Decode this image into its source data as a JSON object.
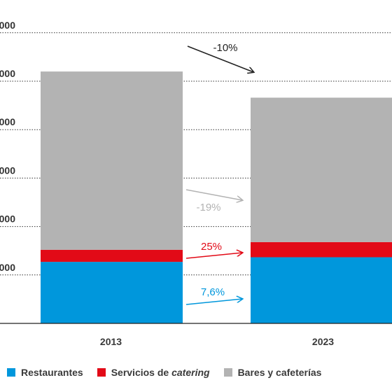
{
  "chart_data": {
    "type": "bar",
    "stacked": true,
    "categories": [
      "2013",
      "2023"
    ],
    "ytick_labels": [
      "000",
      "000",
      "000",
      "000",
      "000",
      "000"
    ],
    "series": [
      {
        "name": "Restaurantes",
        "color": "#0097dc",
        "values": [
          1270,
          1366
        ]
      },
      {
        "name": "Servicios de catering",
        "color": "#e20a17",
        "values": [
          250,
          313
        ]
      },
      {
        "name": "Bares y cafeterías",
        "color": "#b3b3b3",
        "values": [
          3680,
          2981
        ]
      }
    ],
    "annotations": [
      {
        "label": "-10%",
        "color": "#222222"
      },
      {
        "label": "-19%",
        "color": "#b3b3b3"
      },
      {
        "label": "25%",
        "color": "#e20a17"
      },
      {
        "label": "7,6%",
        "color": "#0097dc"
      }
    ]
  },
  "legend": {
    "restaurantes": "Restaurantes",
    "catering_prefix": "Servicios de ",
    "catering_italic": "catering",
    "bares": "Bares y cafeterías"
  }
}
